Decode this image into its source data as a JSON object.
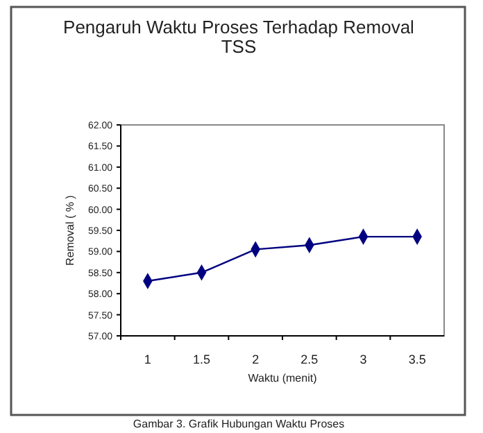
{
  "chart_data": {
    "type": "line",
    "title": "Pengaruh Waktu Proses Terhadap  Removal\nTSS",
    "xlabel": "Waktu (menit)",
    "ylabel": "Removal ( % )",
    "categories": [
      "1",
      "1.5",
      "2",
      "2.5",
      "3",
      "3.5"
    ],
    "series": [
      {
        "color": "#000080",
        "values": [
          58.3,
          58.5,
          59.05,
          59.15,
          59.35,
          59.35
        ]
      }
    ],
    "ylim": [
      57,
      62
    ],
    "yticks": [
      {
        "value": 57,
        "label": "57.00"
      },
      {
        "value": 57.5,
        "label": "57.50"
      },
      {
        "value": 58,
        "label": "58.00"
      },
      {
        "value": 58.5,
        "label": "58.50"
      },
      {
        "value": 59,
        "label": "59.00"
      },
      {
        "value": 59.5,
        "label": "59.50"
      },
      {
        "value": 60,
        "label": "60.00"
      },
      {
        "value": 60.5,
        "label": "60.50"
      },
      {
        "value": 61,
        "label": "61.00"
      },
      {
        "value": 61.5,
        "label": "61.50"
      },
      {
        "value": 62,
        "label": "62.00"
      }
    ],
    "marker": "diamond",
    "line_style": "solid",
    "grid": false,
    "annotations": [
      "Gambar 3. Grafik Hubungan Waktu Proses"
    ]
  }
}
